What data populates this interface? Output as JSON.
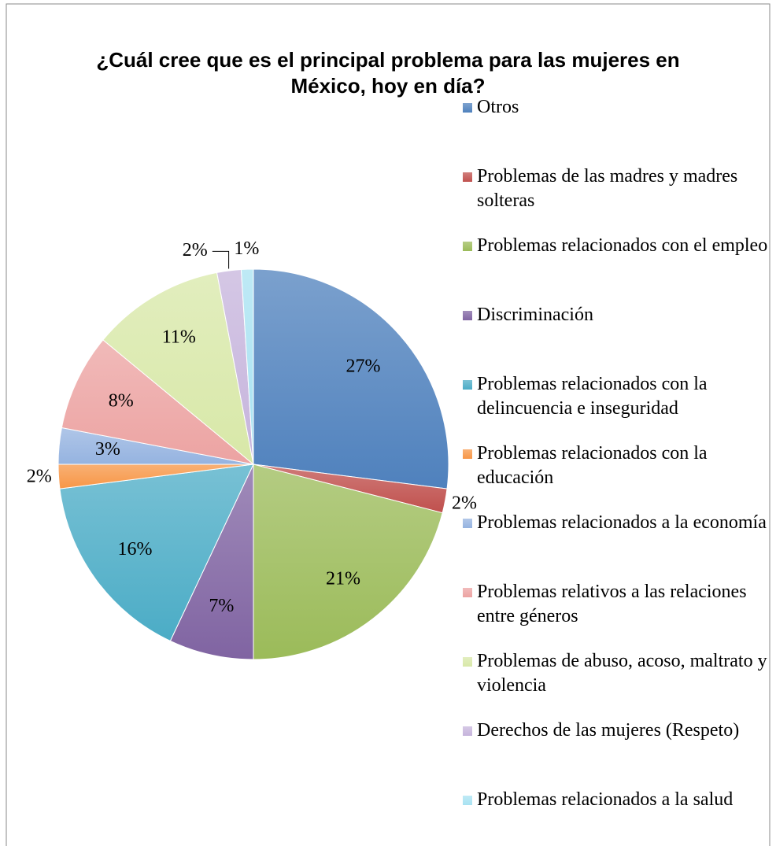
{
  "chart_data": {
    "type": "pie",
    "title": "¿Cuál cree que es el principal problema para las mujeres en México, hoy en día?",
    "categories": [
      "Otros",
      "Problemas de las madres y madres solteras",
      "Problemas relacionados con el empleo",
      "Discriminación",
      "Problemas relacionados con la delincuencia e inseguridad",
      "Problemas relacionados con la educación",
      "Problemas relacionados a la economía",
      "Problemas relativos a las relaciones entre géneros",
      "Problemas de abuso, acoso, maltrato y violencia",
      "Derechos de las mujeres (Respeto)",
      "Problemas relacionados a la salud"
    ],
    "values": [
      27,
      2,
      21,
      7,
      16,
      2,
      3,
      8,
      11,
      2,
      1
    ],
    "value_labels": [
      "27%",
      "2%",
      "21%",
      "7%",
      "16%",
      "2%",
      "3%",
      "8%",
      "11%",
      "2%",
      "1%"
    ],
    "colors": [
      "#4f81bd",
      "#c0504d",
      "#9bbb59",
      "#8064a2",
      "#4bacc6",
      "#f79646",
      "#95b3e0",
      "#eca3a2",
      "#d8e8a8",
      "#c6b4dc",
      "#a8e2f2"
    ],
    "legend": "right"
  }
}
